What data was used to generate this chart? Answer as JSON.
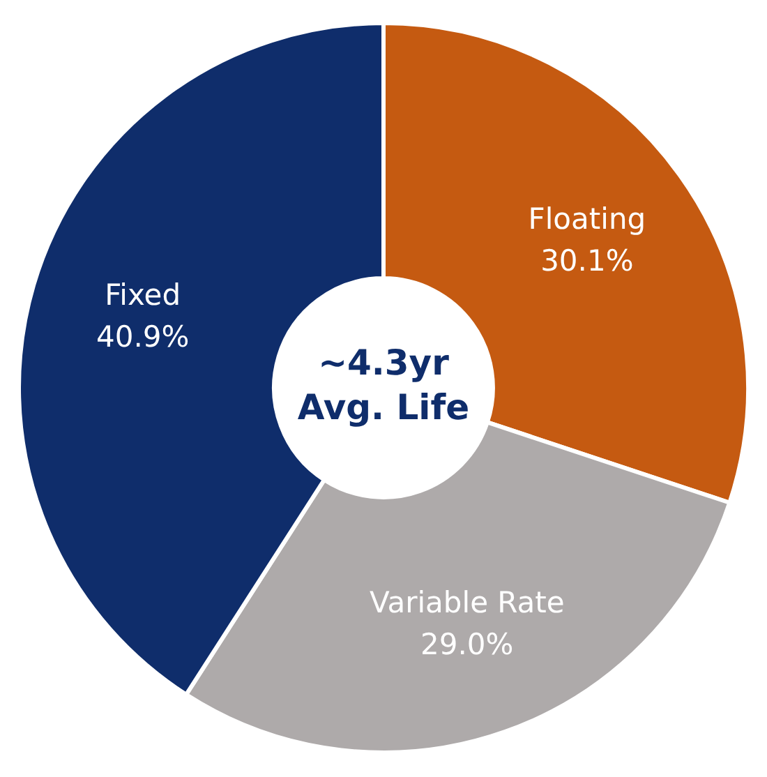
{
  "chart_data": {
    "type": "donut",
    "categories": [
      "Floating",
      "Variable Rate",
      "Fixed"
    ],
    "values": [
      30.1,
      29.0,
      40.9
    ],
    "colors": [
      "#c55a11",
      "#aeaaaa",
      "#0f2d6b"
    ],
    "value_labels": [
      "30.1%",
      "29.0%",
      "40.9%"
    ],
    "annotations": [
      "~4.3yr",
      "Avg. Life"
    ]
  }
}
